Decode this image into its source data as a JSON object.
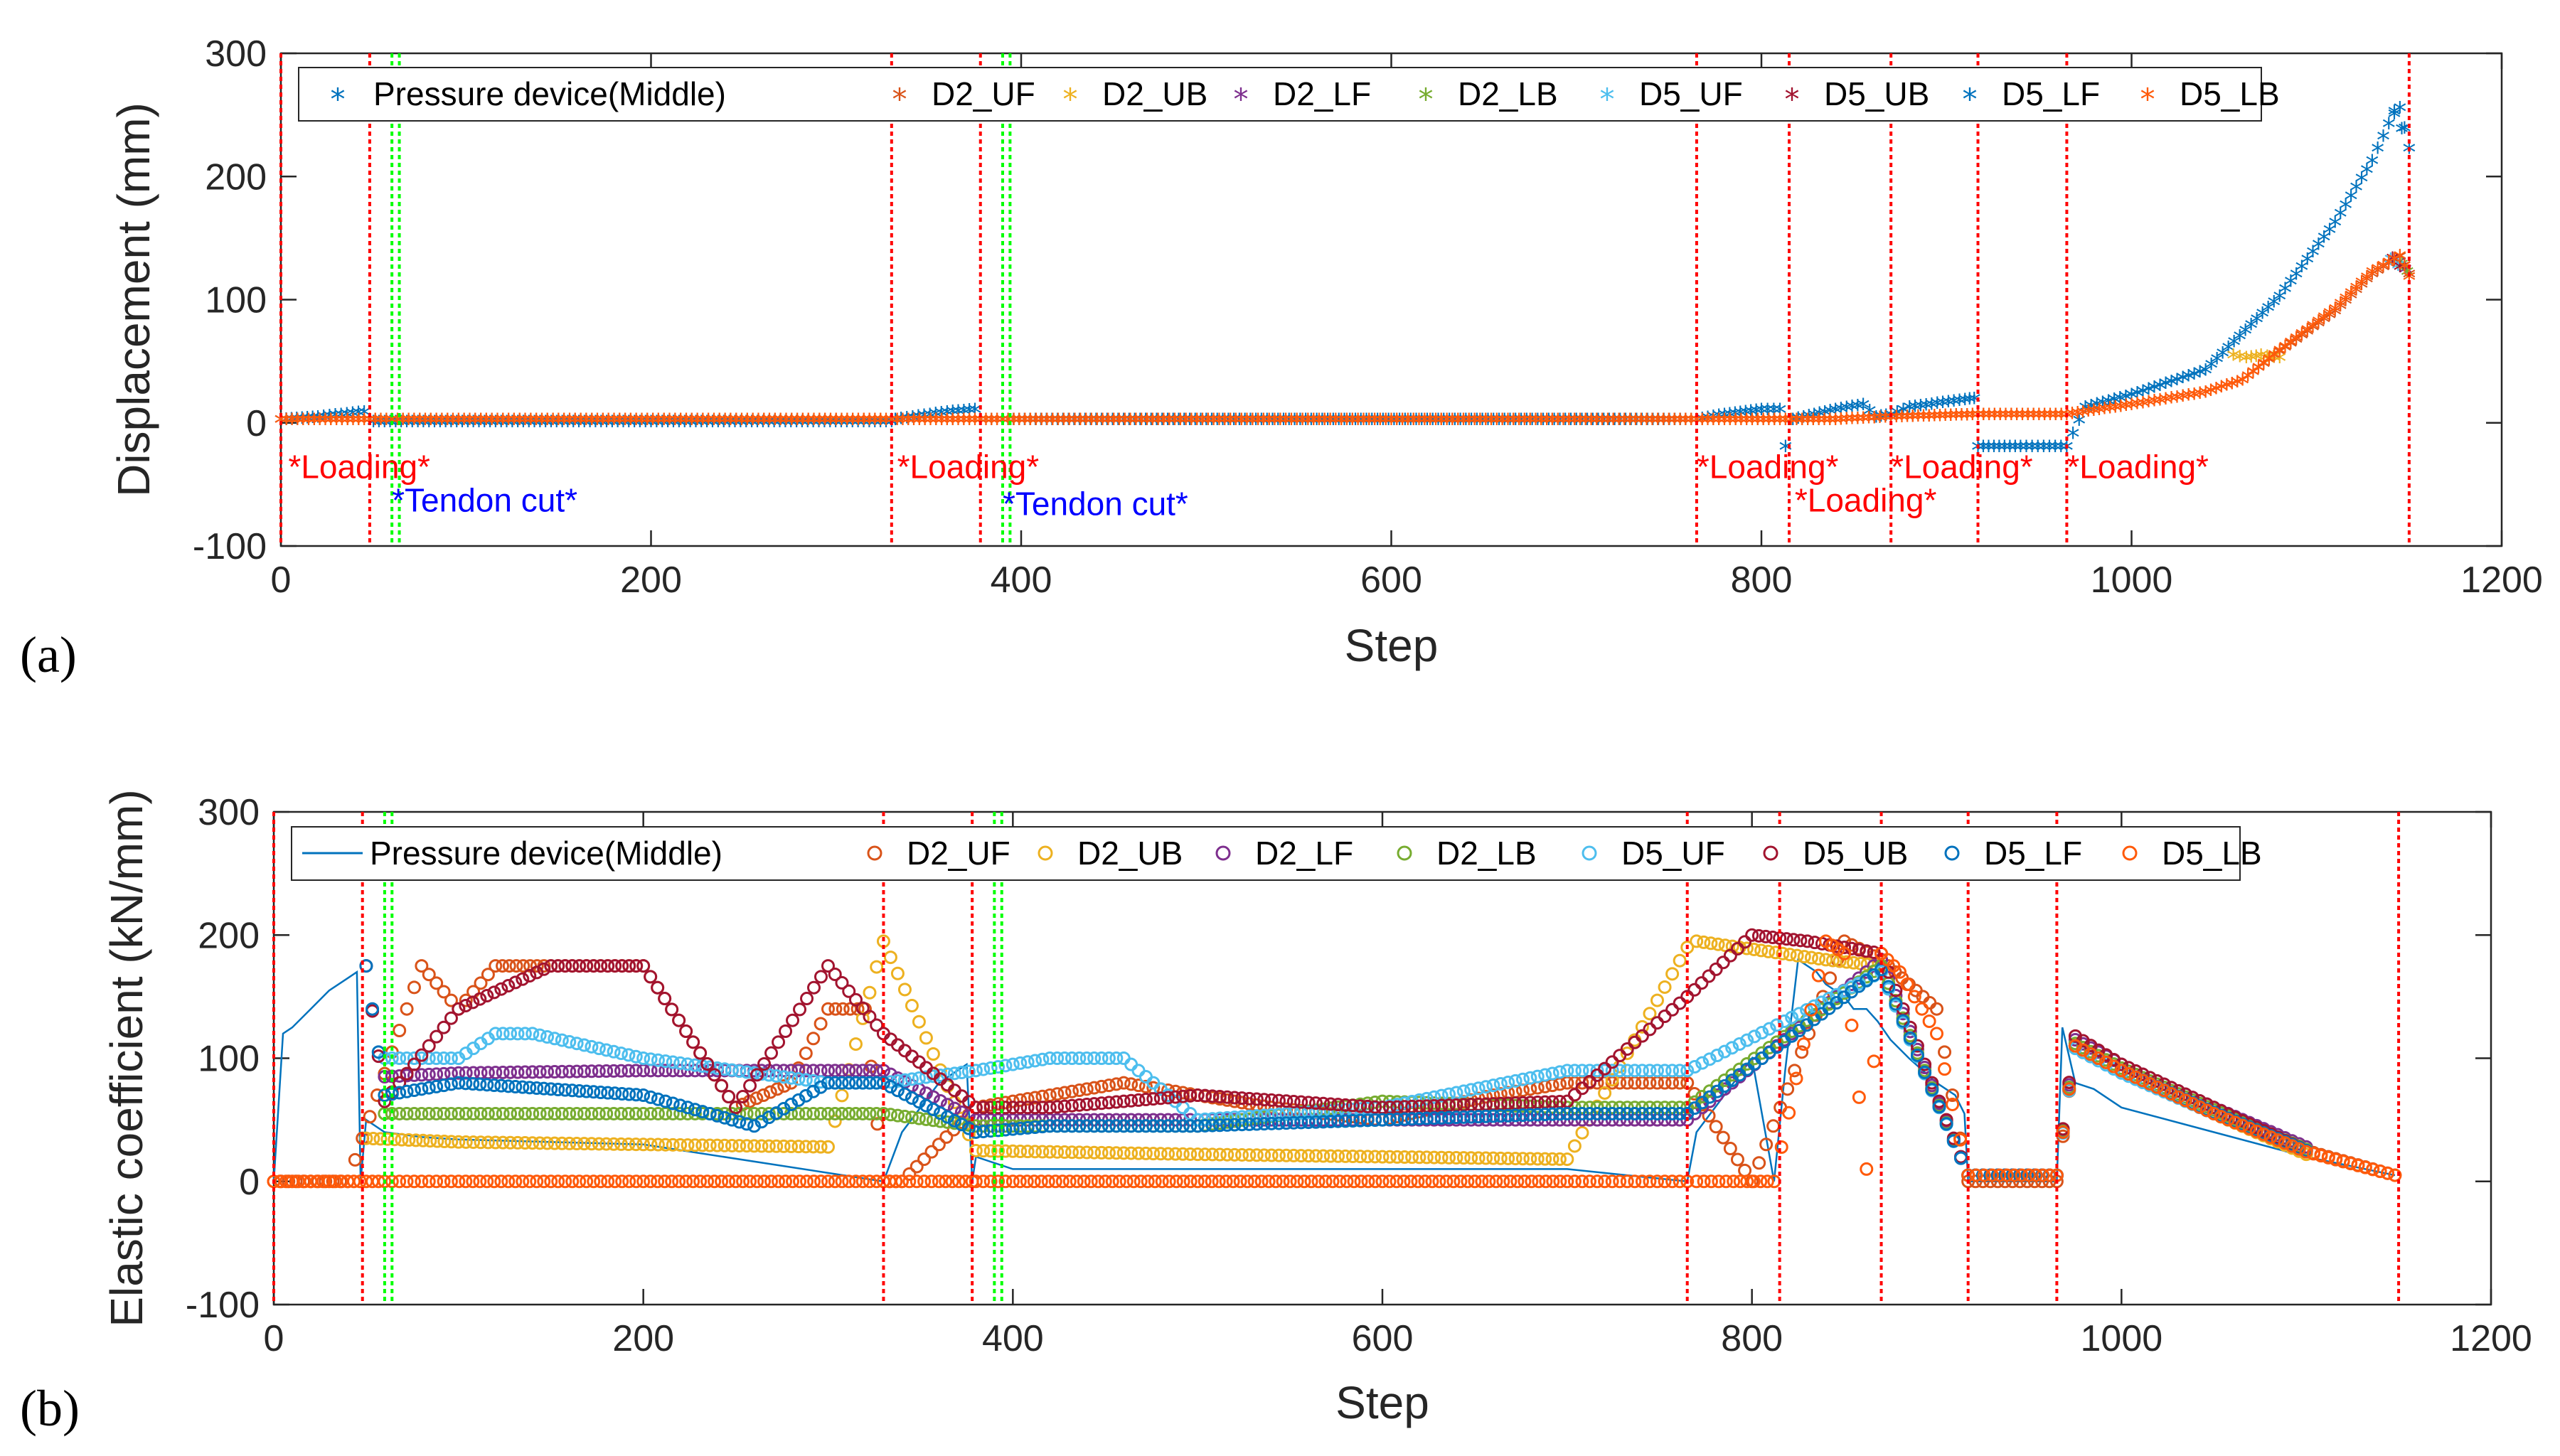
{
  "colors": {
    "c1": "#0072BD",
    "c2": "#D95319",
    "c3": "#EDB120",
    "c4": "#7E2F8E",
    "c5": "#77AC30",
    "c6": "#4DBEEE",
    "c7": "#A2142F",
    "c8": "#0072BD",
    "c9": "#FF5A0A",
    "loading_line": "#FF0000",
    "tendon_line": "#00FF00",
    "tendon_text": "#0000FF"
  },
  "chart_data": [
    {
      "type": "scatter",
      "panel_label": "(a)",
      "xlabel": "Step",
      "ylabel": "Displacement (mm)",
      "xlim": [
        0,
        1200
      ],
      "ylim": [
        -100,
        300
      ],
      "xticks": [
        0,
        200,
        400,
        600,
        800,
        1000,
        1200
      ],
      "yticks": [
        -100,
        0,
        100,
        200,
        300
      ],
      "legend": [
        "Pressure device(Middle)",
        "D2_UF",
        "D2_UB",
        "D2_LF",
        "D2_LB",
        "D5_UF",
        "D5_UB",
        "D5_LF",
        "D5_LB"
      ],
      "loading_steps": [
        0,
        48,
        330,
        378,
        765,
        815,
        870,
        917,
        965,
        1150
      ],
      "tendon_cut_steps": [
        60,
        64,
        390,
        394
      ],
      "annotations": [
        {
          "text": "*Loading*",
          "x": 4,
          "y": -45,
          "kind": "loading"
        },
        {
          "text": "*Loading*",
          "x": 333,
          "y": -45,
          "kind": "loading"
        },
        {
          "text": "*Loading*",
          "x": 765,
          "y": -45,
          "kind": "loading"
        },
        {
          "text": "*Loading*",
          "x": 870,
          "y": -45,
          "kind": "loading"
        },
        {
          "text": "*Loading*",
          "x": 965,
          "y": -45,
          "kind": "loading"
        },
        {
          "text": "*Loading*",
          "x": 818,
          "y": -72,
          "kind": "loading"
        },
        {
          "text": "*Tendon cut*",
          "x": 60,
          "y": -72,
          "kind": "tendon"
        },
        {
          "text": "*Tendon cut*",
          "x": 390,
          "y": -75,
          "kind": "tendon"
        }
      ],
      "series": [
        {
          "name": "Pressure device(Middle)",
          "x": [
            0,
            20,
            45,
            48,
            50,
            200,
            330,
            332,
            360,
            375,
            378,
            500,
            700,
            765,
            780,
            800,
            810,
            813,
            817,
            840,
            855,
            862,
            870,
            880,
            910,
            915,
            917,
            940,
            965,
            975,
            1000,
            1040,
            1080,
            1110,
            1130,
            1142,
            1145,
            1150
          ],
          "y": [
            0,
            2,
            6,
            0,
            -2,
            -2,
            -2,
            0,
            6,
            8,
            0,
            0,
            0,
            0,
            4,
            8,
            8,
            -22,
            0,
            8,
            12,
            2,
            4,
            10,
            16,
            17,
            -22,
            -22,
            -22,
            10,
            20,
            40,
            100,
            160,
            210,
            250,
            253,
            220
          ]
        },
        {
          "name": "D2_UF",
          "x": [
            0,
            48,
            330,
            378,
            765,
            840,
            870,
            917,
            965,
            1000,
            1040,
            1060,
            1080,
            1110,
            1130,
            1145,
            1150
          ],
          "y": [
            0,
            0,
            0,
            0,
            0,
            0,
            2,
            4,
            4,
            12,
            22,
            32,
            55,
            88,
            118,
            132,
            118
          ]
        },
        {
          "name": "D2_UB",
          "x": [
            1055,
            1062,
            1070,
            1080
          ],
          "y": [
            52,
            50,
            52,
            50
          ]
        },
        {
          "name": "D2_LF",
          "x": [
            1145,
            1148
          ],
          "y": [
            128,
            122
          ]
        },
        {
          "name": "D2_LB",
          "x": [
            1146,
            1149
          ],
          "y": [
            126,
            120
          ]
        },
        {
          "name": "D5_UF",
          "x": [
            1140,
            1144
          ],
          "y": [
            130,
            125
          ]
        },
        {
          "name": "D5_UB",
          "x": [
            1141,
            1145
          ],
          "y": [
            131,
            124
          ]
        },
        {
          "name": "D5_LF",
          "x": [
            1142,
            1146
          ],
          "y": [
            248,
            236
          ]
        },
        {
          "name": "D5_LB",
          "x": [
            0,
            48,
            330,
            378,
            765,
            840,
            870,
            917,
            965,
            1000,
            1040,
            1060,
            1080,
            1110,
            1130,
            1145,
            1150
          ],
          "y": [
            0,
            0,
            0,
            0,
            0,
            0,
            2,
            4,
            4,
            12,
            22,
            32,
            56,
            90,
            120,
            133,
            116
          ]
        }
      ]
    },
    {
      "type": "scatter",
      "panel_label": "(b)",
      "xlabel": "Step",
      "ylabel": "Elastic coefficient (kN/mm)",
      "xlim": [
        0,
        1200
      ],
      "ylim": [
        -100,
        300
      ],
      "xticks": [
        0,
        200,
        400,
        600,
        800,
        1000,
        1200
      ],
      "yticks": [
        -100,
        0,
        100,
        200,
        300
      ],
      "legend": [
        "Pressure device(Middle)",
        "D2_UF",
        "D2_UB",
        "D2_LF",
        "D2_LB",
        "D5_UF",
        "D5_UB",
        "D5_LF",
        "D5_LB"
      ],
      "loading_steps": [
        0,
        48,
        330,
        378,
        765,
        815,
        870,
        917,
        965,
        1150
      ],
      "tendon_cut_steps": [
        60,
        64,
        390,
        394
      ],
      "series": [
        {
          "name": "Pressure device(Middle)",
          "x": [
            0,
            5,
            10,
            20,
            30,
            40,
            45,
            47,
            50,
            60,
            70,
            80,
            100,
            200,
            330,
            340,
            360,
            375,
            378,
            380,
            400,
            500,
            700,
            765,
            770,
            790,
            800,
            812,
            818,
            825,
            835,
            840,
            850,
            855,
            862,
            868,
            875,
            885,
            900,
            910,
            915,
            917,
            930,
            960,
            965,
            968,
            975,
            985,
            1000,
            1050,
            1100,
            1148
          ],
          "y": [
            0,
            120,
            125,
            140,
            155,
            165,
            170,
            0,
            50,
            40,
            38,
            36,
            34,
            30,
            0,
            40,
            80,
            95,
            0,
            20,
            10,
            10,
            10,
            0,
            40,
            80,
            100,
            0,
            90,
            180,
            170,
            160,
            150,
            140,
            140,
            130,
            115,
            100,
            80,
            70,
            55,
            0,
            0,
            0,
            0,
            125,
            80,
            75,
            60,
            40,
            20,
            5
          ]
        },
        {
          "name": "D2_UF",
          "x": [
            0,
            40,
            80,
            100,
            120,
            150,
            200,
            250,
            280,
            300,
            320,
            330,
            340,
            380,
            420,
            460,
            500,
            540,
            600,
            660,
            700,
            765,
            800,
            850,
            870,
            900,
            917,
            965,
            975,
            1000,
            1050,
            1100,
            1148
          ],
          "y": [
            0,
            0,
            175,
            140,
            175,
            175,
            175,
            60,
            80,
            140,
            140,
            0,
            0,
            60,
            70,
            80,
            70,
            60,
            50,
            70,
            80,
            80,
            0,
            195,
            180,
            140,
            0,
            0,
            110,
            90,
            55,
            25,
            5
          ]
        },
        {
          "name": "D2_UB",
          "x": [
            50,
            100,
            200,
            300,
            330,
            380,
            500,
            700,
            765,
            770,
            840,
            870,
            917,
            965,
            975,
            1000,
            1050,
            1100
          ],
          "y": [
            35,
            32,
            30,
            28,
            195,
            25,
            22,
            18,
            190,
            195,
            180,
            175,
            5,
            5,
            110,
            90,
            55,
            22
          ]
        },
        {
          "name": "D2_LF",
          "x": [
            60,
            100,
            200,
            300,
            330,
            380,
            500,
            700,
            765,
            870,
            917,
            965,
            975,
            1000,
            1050,
            1100
          ],
          "y": [
            85,
            88,
            90,
            90,
            90,
            50,
            50,
            50,
            50,
            180,
            5,
            5,
            115,
            95,
            60,
            28
          ]
        },
        {
          "name": "D2_LB",
          "x": [
            60,
            100,
            200,
            300,
            330,
            380,
            500,
            600,
            700,
            765,
            870,
            917,
            965,
            975,
            1000,
            1050,
            1100
          ],
          "y": [
            55,
            55,
            55,
            55,
            55,
            45,
            45,
            65,
            60,
            60,
            175,
            5,
            5,
            112,
            92,
            58,
            26
          ]
        },
        {
          "name": "D5_UF",
          "x": [
            60,
            100,
            120,
            140,
            200,
            300,
            330,
            380,
            420,
            460,
            500,
            600,
            700,
            765,
            870,
            917,
            965,
            975,
            1000,
            1050,
            1100
          ],
          "y": [
            100,
            100,
            120,
            120,
            100,
            80,
            80,
            90,
            100,
            100,
            50,
            60,
            90,
            90,
            170,
            5,
            5,
            108,
            88,
            55,
            24
          ]
        },
        {
          "name": "D5_UB",
          "x": [
            50,
            60,
            100,
            150,
            200,
            250,
            300,
            330,
            380,
            420,
            500,
            600,
            700,
            765,
            800,
            830,
            870,
            917,
            965,
            975,
            1000,
            1050,
            1100
          ],
          "y": [
            175,
            65,
            140,
            175,
            175,
            60,
            175,
            120,
            60,
            60,
            70,
            60,
            65,
            150,
            200,
            195,
            185,
            5,
            5,
            118,
            95,
            60,
            25
          ]
        },
        {
          "name": "D5_LF",
          "x": [
            50,
            60,
            100,
            150,
            200,
            260,
            300,
            330,
            380,
            420,
            500,
            600,
            700,
            765,
            870,
            917,
            965,
            975,
            1000,
            1050,
            1100
          ],
          "y": [
            175,
            70,
            80,
            75,
            70,
            45,
            80,
            80,
            40,
            45,
            45,
            50,
            55,
            55,
            172,
            5,
            5,
            110,
            90,
            56,
            25
          ]
        },
        {
          "name": "D5_LB",
          "x": [
            0,
            10,
            20,
            30,
            40,
            50,
            60,
            100,
            150,
            200,
            250,
            300,
            330,
            340,
            360,
            378,
            380,
            400,
            450,
            500,
            550,
            600,
            650,
            700,
            765,
            770,
            790,
            812,
            840,
            850,
            862,
            870,
            880,
            900,
            917,
            930,
            950,
            965,
            975,
            1000,
            1050,
            1100,
            1148
          ],
          "y": [
            0,
            0,
            0,
            0,
            0,
            0,
            0,
            0,
            0,
            0,
            0,
            0,
            0,
            0,
            0,
            0,
            0,
            0,
            0,
            0,
            0,
            0,
            0,
            0,
            0,
            0,
            0,
            0,
            195,
            185,
            10,
            185,
            170,
            120,
            5,
            5,
            5,
            5,
            110,
            90,
            55,
            24,
            5
          ]
        }
      ]
    }
  ]
}
